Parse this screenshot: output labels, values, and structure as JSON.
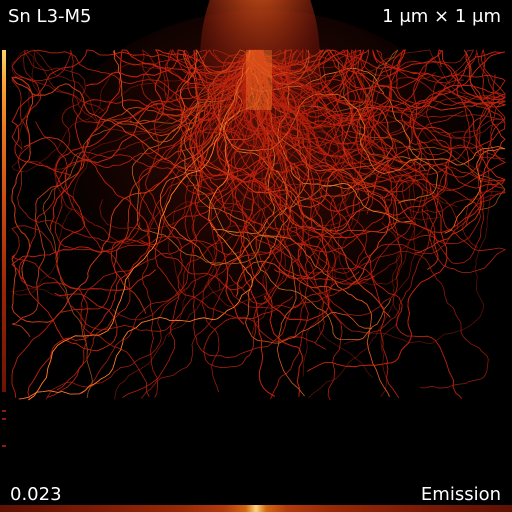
{
  "header": {
    "title": "Sn L3-M5",
    "scale": "1 μm × 1 μm"
  },
  "footer": {
    "value": "0.023",
    "mode": "Emission"
  },
  "colors": {
    "background": "#000000",
    "trace": "#c0220e",
    "hot": "#ff8a2a",
    "text": "#ffffff"
  }
}
